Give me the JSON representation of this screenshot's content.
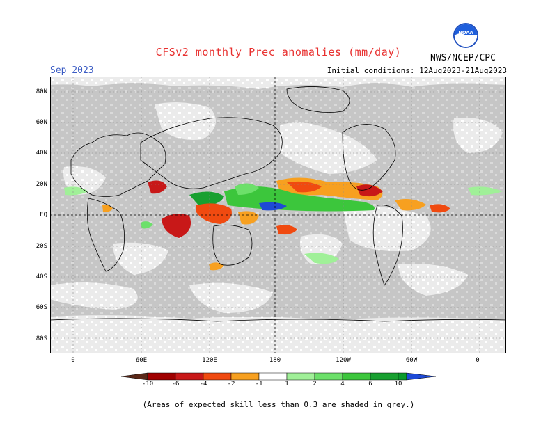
{
  "header": {
    "title": "CFSv2 monthly Prec anomalies (mm/day)",
    "month": "Sep 2023",
    "initial_conditions": "Initial conditions: 12Aug2023-21Aug2023",
    "agency": "NWS/NCEP/CPC",
    "logo_text": "NOAA"
  },
  "map": {
    "projection": "equirectangular",
    "lon_range": [
      -20,
      380
    ],
    "lat_range": [
      -90,
      90
    ],
    "lat_labels": [
      "80N",
      "60N",
      "40N",
      "20N",
      "EQ",
      "20S",
      "40S",
      "60S",
      "80S"
    ],
    "lon_labels": [
      "0",
      "60E",
      "120E",
      "180",
      "120W",
      "60W",
      "0"
    ],
    "grey_meaning": "low skill"
  },
  "colorbar": {
    "labels": [
      "-10",
      "-6",
      "-4",
      "-2",
      "-1",
      "1",
      "2",
      "4",
      "6",
      "10"
    ],
    "colors": [
      "#5a2818",
      "#a00000",
      "#c81818",
      "#f04a10",
      "#f7a020",
      "#ffffff",
      "#a0f098",
      "#6ce06a",
      "#3cc63c",
      "#18a030",
      "#0a9a2c",
      "#1e4ad6"
    ]
  },
  "colors": {
    "grey_mask": "#c6c6c6",
    "coast": "#000000",
    "grid": "#8a8a8a"
  },
  "footnote": "(Areas of expected skill less than 0.3 are shaded in grey.)"
}
